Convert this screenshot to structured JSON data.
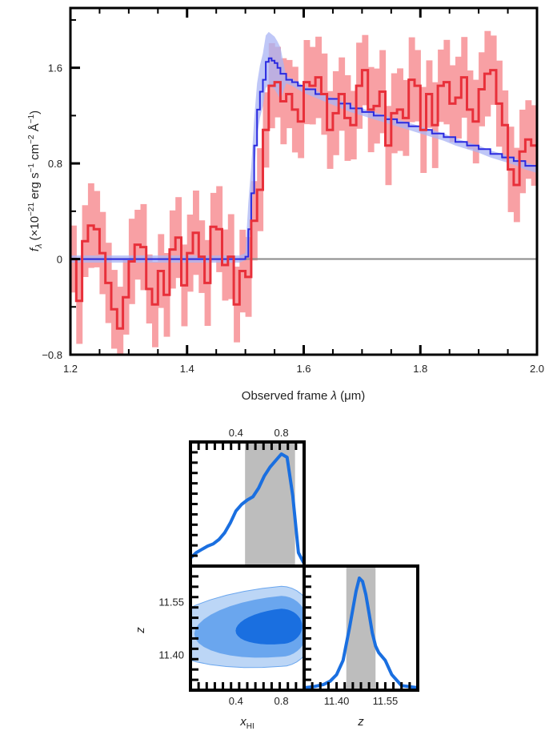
{
  "colors": {
    "observed_line": "#e8303a",
    "observed_band": "#f8a0a4",
    "model_line": "#2a2ae0",
    "model_band": "#aab4f4",
    "posterior_line": "#1a6fe0",
    "posterior_fill_inner": "#1a6fe0",
    "posterior_fill_mid": "#6aa6ee",
    "posterior_fill_outer": "#bcd6f6",
    "interval_band": "#bdbdbd",
    "zero_line": "#8a8a8a",
    "axes": "#000000"
  },
  "chart_data": [
    {
      "type": "line",
      "panel": "spectrum",
      "xlabel": {
        "prefix": "Observed frame ",
        "symbol": "λ",
        "suffix": " (μm)"
      },
      "ylabel": {
        "symbol": "f",
        "subscript": "λ",
        "open": " (×10",
        "exp1": "−21",
        "mid1": " erg s",
        "exp2": "−1",
        "mid2": " cm",
        "exp3": "−2",
        "mid3": " Å",
        "exp4": "−1",
        "close": ")"
      },
      "xlim": [
        1.2,
        2.0
      ],
      "ylim": [
        -0.8,
        2.1
      ],
      "xticks": [
        1.2,
        1.4,
        1.6,
        1.8,
        2.0
      ],
      "xtick_labels": [
        "1.2",
        "1.4",
        "1.6",
        "1.8",
        "2.0"
      ],
      "yticks": [
        -0.8,
        0,
        0.8,
        1.6
      ],
      "ytick_labels": [
        "−0.8",
        "0",
        "0.8",
        "1.6"
      ],
      "grid": false,
      "zero_line": 0,
      "series": [
        {
          "role": "observed",
          "step": true,
          "x": [
            1.2,
            1.21,
            1.22,
            1.23,
            1.24,
            1.25,
            1.26,
            1.27,
            1.28,
            1.29,
            1.3,
            1.31,
            1.32,
            1.33,
            1.34,
            1.35,
            1.36,
            1.37,
            1.38,
            1.39,
            1.4,
            1.41,
            1.42,
            1.43,
            1.44,
            1.45,
            1.46,
            1.47,
            1.48,
            1.49,
            1.5,
            1.51,
            1.52,
            1.53,
            1.54,
            1.55,
            1.56,
            1.57,
            1.58,
            1.59,
            1.6,
            1.61,
            1.62,
            1.63,
            1.64,
            1.65,
            1.66,
            1.67,
            1.68,
            1.69,
            1.7,
            1.71,
            1.72,
            1.73,
            1.74,
            1.75,
            1.76,
            1.77,
            1.78,
            1.79,
            1.8,
            1.81,
            1.82,
            1.83,
            1.84,
            1.85,
            1.86,
            1.87,
            1.88,
            1.89,
            1.9,
            1.91,
            1.92,
            1.93,
            1.94,
            1.95,
            1.96,
            1.97,
            1.98,
            1.99,
            2.0
          ],
          "y": [
            0.0,
            -0.35,
            0.15,
            0.28,
            0.25,
            0.05,
            -0.2,
            -0.42,
            -0.58,
            -0.32,
            -0.02,
            0.12,
            0.1,
            -0.25,
            -0.38,
            -0.1,
            -0.3,
            0.08,
            0.18,
            -0.22,
            0.05,
            0.22,
            0.02,
            -0.2,
            0.27,
            0.25,
            -0.05,
            0.02,
            -0.38,
            -0.1,
            -0.15,
            0.32,
            0.58,
            1.08,
            1.45,
            1.48,
            1.32,
            1.38,
            1.25,
            1.15,
            1.48,
            1.45,
            1.52,
            1.38,
            1.08,
            1.22,
            1.38,
            1.18,
            1.12,
            1.45,
            1.58,
            1.25,
            1.28,
            1.4,
            0.95,
            1.22,
            1.25,
            1.18,
            1.5,
            1.45,
            1.08,
            1.38,
            1.12,
            1.45,
            1.48,
            1.3,
            1.35,
            1.52,
            1.25,
            1.15,
            1.42,
            1.55,
            1.58,
            1.3,
            1.12,
            0.75,
            0.62,
            0.9,
            1.0,
            0.95,
            0.92
          ]
        },
        {
          "role": "model",
          "step": true,
          "x": [
            1.2,
            1.21,
            1.22,
            1.23,
            1.24,
            1.25,
            1.26,
            1.27,
            1.28,
            1.29,
            1.3,
            1.31,
            1.32,
            1.33,
            1.34,
            1.35,
            1.36,
            1.37,
            1.38,
            1.39,
            1.4,
            1.41,
            1.42,
            1.43,
            1.44,
            1.45,
            1.46,
            1.47,
            1.48,
            1.49,
            1.5,
            1.505,
            1.51,
            1.515,
            1.52,
            1.525,
            1.53,
            1.535,
            1.54,
            1.545,
            1.55,
            1.555,
            1.56,
            1.57,
            1.58,
            1.59,
            1.6,
            1.62,
            1.64,
            1.66,
            1.68,
            1.7,
            1.72,
            1.74,
            1.76,
            1.78,
            1.8,
            1.82,
            1.84,
            1.86,
            1.88,
            1.9,
            1.92,
            1.94,
            1.96,
            1.98,
            2.0
          ],
          "y": [
            0,
            0,
            0,
            0,
            0,
            0,
            0,
            0,
            0,
            0,
            0,
            0,
            0,
            0,
            0,
            0,
            0,
            0,
            0,
            0,
            0,
            0,
            0,
            0,
            0,
            0,
            0,
            0,
            0,
            0,
            0.02,
            0.25,
            0.55,
            0.95,
            1.25,
            1.4,
            1.5,
            1.65,
            1.68,
            1.66,
            1.64,
            1.6,
            1.55,
            1.5,
            1.48,
            1.45,
            1.42,
            1.38,
            1.34,
            1.3,
            1.26,
            1.23,
            1.2,
            1.17,
            1.14,
            1.11,
            1.08,
            1.05,
            1.02,
            0.98,
            0.95,
            0.92,
            0.88,
            0.85,
            0.82,
            0.78,
            0.75
          ]
        }
      ]
    },
    {
      "type": "area",
      "panel": "posterior-xHI",
      "xlim": [
        0,
        1.0
      ],
      "xticks": [
        0.4,
        0.8
      ],
      "xtick_labels": [
        "0.4",
        "0.8"
      ],
      "shaded_interval": [
        0.48,
        0.92
      ],
      "x": [
        0.0,
        0.05,
        0.1,
        0.15,
        0.2,
        0.25,
        0.3,
        0.35,
        0.4,
        0.45,
        0.5,
        0.55,
        0.6,
        0.65,
        0.7,
        0.75,
        0.8,
        0.85,
        0.9,
        0.95,
        1.0
      ],
      "density": [
        0.05,
        0.1,
        0.13,
        0.16,
        0.18,
        0.22,
        0.28,
        0.37,
        0.48,
        0.54,
        0.58,
        0.61,
        0.69,
        0.8,
        0.88,
        0.94,
        1.0,
        0.97,
        0.62,
        0.1,
        0.0
      ]
    },
    {
      "type": "area",
      "panel": "posterior-z",
      "xlim": [
        11.3,
        11.65
      ],
      "xticks": [
        11.4,
        11.55
      ],
      "xtick_labels": [
        "11.40",
        "11.55"
      ],
      "xlabel": "z",
      "shaded_interval": [
        11.43,
        11.52
      ],
      "x": [
        11.3,
        11.33,
        11.36,
        11.38,
        11.4,
        11.42,
        11.44,
        11.46,
        11.47,
        11.48,
        11.49,
        11.5,
        11.51,
        11.52,
        11.53,
        11.55,
        11.57,
        11.6,
        11.65
      ],
      "density": [
        0.0,
        0.01,
        0.03,
        0.06,
        0.12,
        0.25,
        0.55,
        0.88,
        1.0,
        0.97,
        0.85,
        0.68,
        0.5,
        0.38,
        0.32,
        0.25,
        0.12,
        0.02,
        0.0
      ]
    },
    {
      "type": "contour",
      "panel": "joint-xHI-z",
      "xlim": [
        0,
        1.0
      ],
      "ylim": [
        11.3,
        11.65
      ],
      "xticks": [
        0.4,
        0.8
      ],
      "xtick_labels": [
        "0.4",
        "0.8"
      ],
      "yticks": [
        11.4,
        11.55
      ],
      "ytick_labels": [
        "11.40",
        "11.55"
      ],
      "xlabel": {
        "symbol": "x",
        "subscript": "HI"
      },
      "ylabel": "z",
      "peak": [
        0.8,
        11.48
      ]
    }
  ]
}
